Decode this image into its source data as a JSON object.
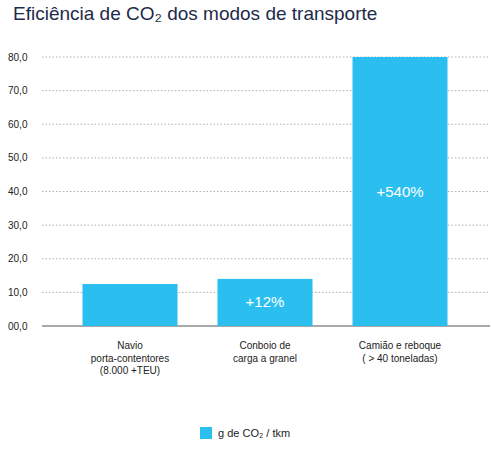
{
  "chart_data": {
    "type": "bar",
    "title": "Eficiência de CO₂ dos modos de transporte",
    "categories": [
      "Navio\nporta-contentores\n(8.000 +TEU)",
      "Conboio de\ncarga a granel",
      "Camião e reboque\n( > 40 toneladas)"
    ],
    "series": [
      {
        "name": "g de CO₂ / tkm",
        "color": "#2bbfef",
        "values": [
          12.5,
          14,
          80
        ]
      }
    ],
    "annotations": [
      null,
      "+12%",
      "+540%"
    ],
    "ylim": [
      0,
      80
    ],
    "yticks": [
      {
        "value": 0,
        "label": "00,0"
      },
      {
        "value": 10,
        "label": "10,0"
      },
      {
        "value": 20,
        "label": "20,0"
      },
      {
        "value": 30,
        "label": "30,0"
      },
      {
        "value": 40,
        "label": "40,0"
      },
      {
        "value": 50,
        "label": "50,0"
      },
      {
        "value": 60,
        "label": "60,0"
      },
      {
        "value": 70,
        "label": "70,0"
      },
      {
        "value": 80,
        "label": "80,0"
      }
    ],
    "grid": true,
    "legend": "bottom"
  }
}
